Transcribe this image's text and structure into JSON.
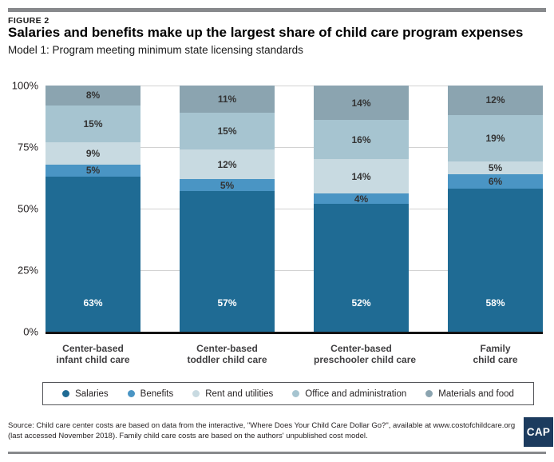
{
  "figure_label": "FIGURE 2",
  "title": "Salaries and benefits make up the largest share of child care program expenses",
  "subtitle": "Model 1: Program meeting minimum state licensing standards",
  "chart_data": {
    "type": "bar",
    "variant": "stacked-100-percent",
    "categories": [
      {
        "line1": "Center-based",
        "line2": "infant child care"
      },
      {
        "line1": "Center-based",
        "line2": "toddler child care"
      },
      {
        "line1": "Center-based",
        "line2": "preschooler child care"
      },
      {
        "line1": "Family",
        "line2": "child care"
      }
    ],
    "series": [
      {
        "name": "Salaries",
        "color": "#1f6b94",
        "label_color": "#ffffff",
        "label_align": "bottom",
        "values": [
          63,
          57,
          52,
          58
        ]
      },
      {
        "name": "Benefits",
        "color": "#4a95c4",
        "label_color": "#333333",
        "label_align": "center",
        "values": [
          5,
          5,
          4,
          6
        ]
      },
      {
        "name": "Rent and utilities",
        "color": "#c8dae1",
        "label_color": "#333333",
        "label_align": "center",
        "values": [
          9,
          12,
          14,
          5
        ]
      },
      {
        "name": "Office and administration",
        "color": "#a6c4d0",
        "label_color": "#333333",
        "label_align": "center",
        "values": [
          15,
          15,
          16,
          19
        ]
      },
      {
        "name": "Materials and food",
        "color": "#8ba4b0",
        "label_color": "#333333",
        "label_align": "center",
        "values": [
          8,
          11,
          14,
          12
        ]
      }
    ],
    "value_suffix": "%",
    "yticks": [
      "100%",
      "75%",
      "50%",
      "25%",
      "0%"
    ],
    "ylim": [
      0,
      100
    ],
    "grid": true,
    "legend_position": "bottom"
  },
  "source": {
    "line1": "Source: Child care center costs are based on data from the interactive, \"Where Does Your Child Care Dollar Go?\", available at www.costofchildcare.org",
    "line2": "(last accessed November 2018). Family child care costs are based on the authors' unpublished cost model."
  },
  "logo": {
    "text": "CAP",
    "background": "#1c3b5e"
  }
}
